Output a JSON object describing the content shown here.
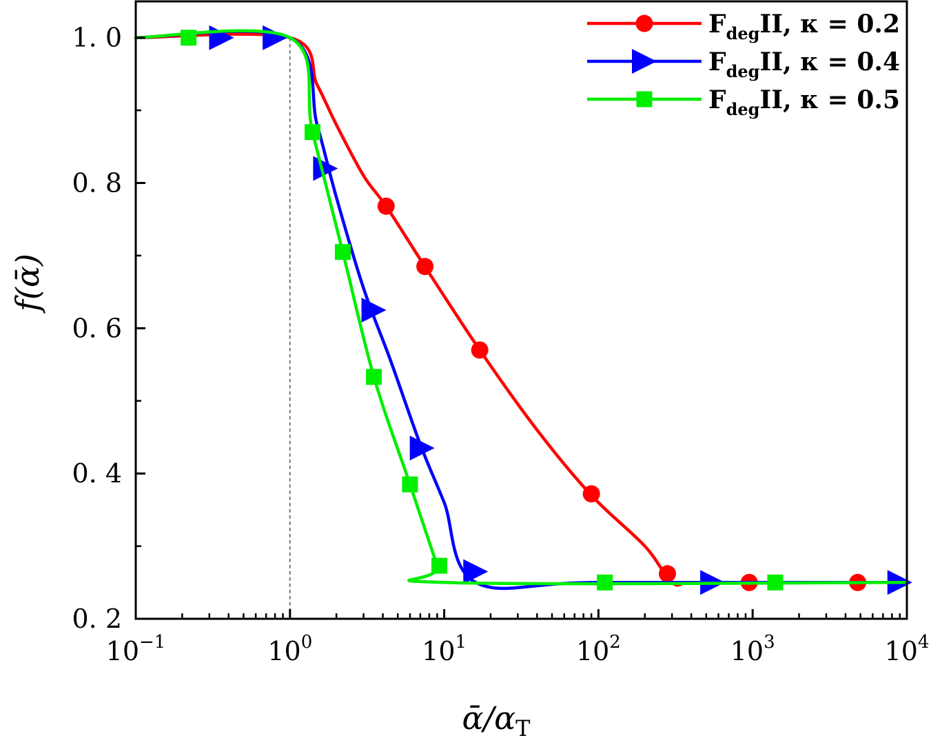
{
  "chart_data": {
    "type": "line",
    "x_scale": "log",
    "xlabel": "ᾱ/α",
    "xlabel_sub": "T",
    "ylabel": "f(ᾱ)",
    "xlim": [
      0.1,
      10000
    ],
    "ylim": [
      0.2,
      1.05
    ],
    "x_ticks": [
      {
        "value": 0.1,
        "base": "10",
        "exp": "−1"
      },
      {
        "value": 1,
        "base": "10",
        "exp": "0"
      },
      {
        "value": 10,
        "base": "10",
        "exp": "1"
      },
      {
        "value": 100,
        "base": "10",
        "exp": "2"
      },
      {
        "value": 1000,
        "base": "10",
        "exp": "3"
      },
      {
        "value": 10000,
        "base": "10",
        "exp": "4"
      }
    ],
    "y_ticks": [
      {
        "value": 0.2,
        "label": "0. 2"
      },
      {
        "value": 0.4,
        "label": "0. 4"
      },
      {
        "value": 0.6,
        "label": "0. 6"
      },
      {
        "value": 0.8,
        "label": "0. 8"
      },
      {
        "value": 1.0,
        "label": "1. 0"
      }
    ],
    "y_minor_ticks": [
      0.3,
      0.5,
      0.7,
      0.9
    ],
    "reference_line_x": 1,
    "legend_position": "top-right",
    "series": [
      {
        "name": "FdegII, κ = 0.2",
        "legend_main": "F",
        "legend_sub": "deg",
        "legend_rest": "II, κ = 0.2",
        "color": "#ff0000",
        "marker": "circle",
        "x": [
          0.1,
          1,
          1.5,
          2,
          3,
          4.2,
          7.5,
          17,
          40,
          90,
          200,
          300,
          400,
          1000,
          10000
        ],
        "y": [
          1.0,
          1.0,
          0.935,
          0.88,
          0.81,
          0.768,
          0.685,
          0.57,
          0.46,
          0.37,
          0.3,
          0.25,
          0.25,
          0.25,
          0.25
        ],
        "marker_x": [
          4.2,
          7.5,
          17,
          90,
          280,
          950,
          4800
        ],
        "marker_y": [
          0.768,
          0.685,
          0.57,
          0.372,
          0.262,
          0.25,
          0.25
        ]
      },
      {
        "name": "FdegII, κ = 0.4",
        "legend_main": "F",
        "legend_sub": "deg",
        "legend_rest": "II, κ = 0.4",
        "color": "#0000ff",
        "marker": "triangle-right",
        "x": [
          0.1,
          1,
          1.5,
          2,
          3,
          4.5,
          7,
          10,
          16,
          100,
          10000
        ],
        "y": [
          1.0,
          1.0,
          0.88,
          0.78,
          0.655,
          0.555,
          0.44,
          0.36,
          0.25,
          0.25,
          0.25
        ],
        "marker_x": [
          0.36,
          0.8,
          1.7,
          3.5,
          7.2,
          16,
          550,
          9000
        ],
        "marker_y": [
          1.0,
          1.0,
          0.82,
          0.625,
          0.435,
          0.265,
          0.25,
          0.25
        ]
      },
      {
        "name": "FdegII, κ = 0.5",
        "legend_main": "F",
        "legend_sub": "deg",
        "legend_rest": "II, κ = 0.5",
        "color": "#00ee00",
        "marker": "square",
        "x": [
          0.1,
          1,
          1.4,
          2.2,
          3.5,
          6,
          9,
          10,
          10000
        ],
        "y": [
          1.0,
          1.0,
          0.87,
          0.705,
          0.533,
          0.385,
          0.273,
          0.25,
          0.25
        ],
        "marker_x": [
          0.22,
          1.4,
          2.2,
          3.5,
          6,
          9.3,
          110,
          1400
        ],
        "marker_y": [
          1.0,
          0.87,
          0.705,
          0.533,
          0.385,
          0.273,
          0.25,
          0.25
        ]
      }
    ]
  }
}
